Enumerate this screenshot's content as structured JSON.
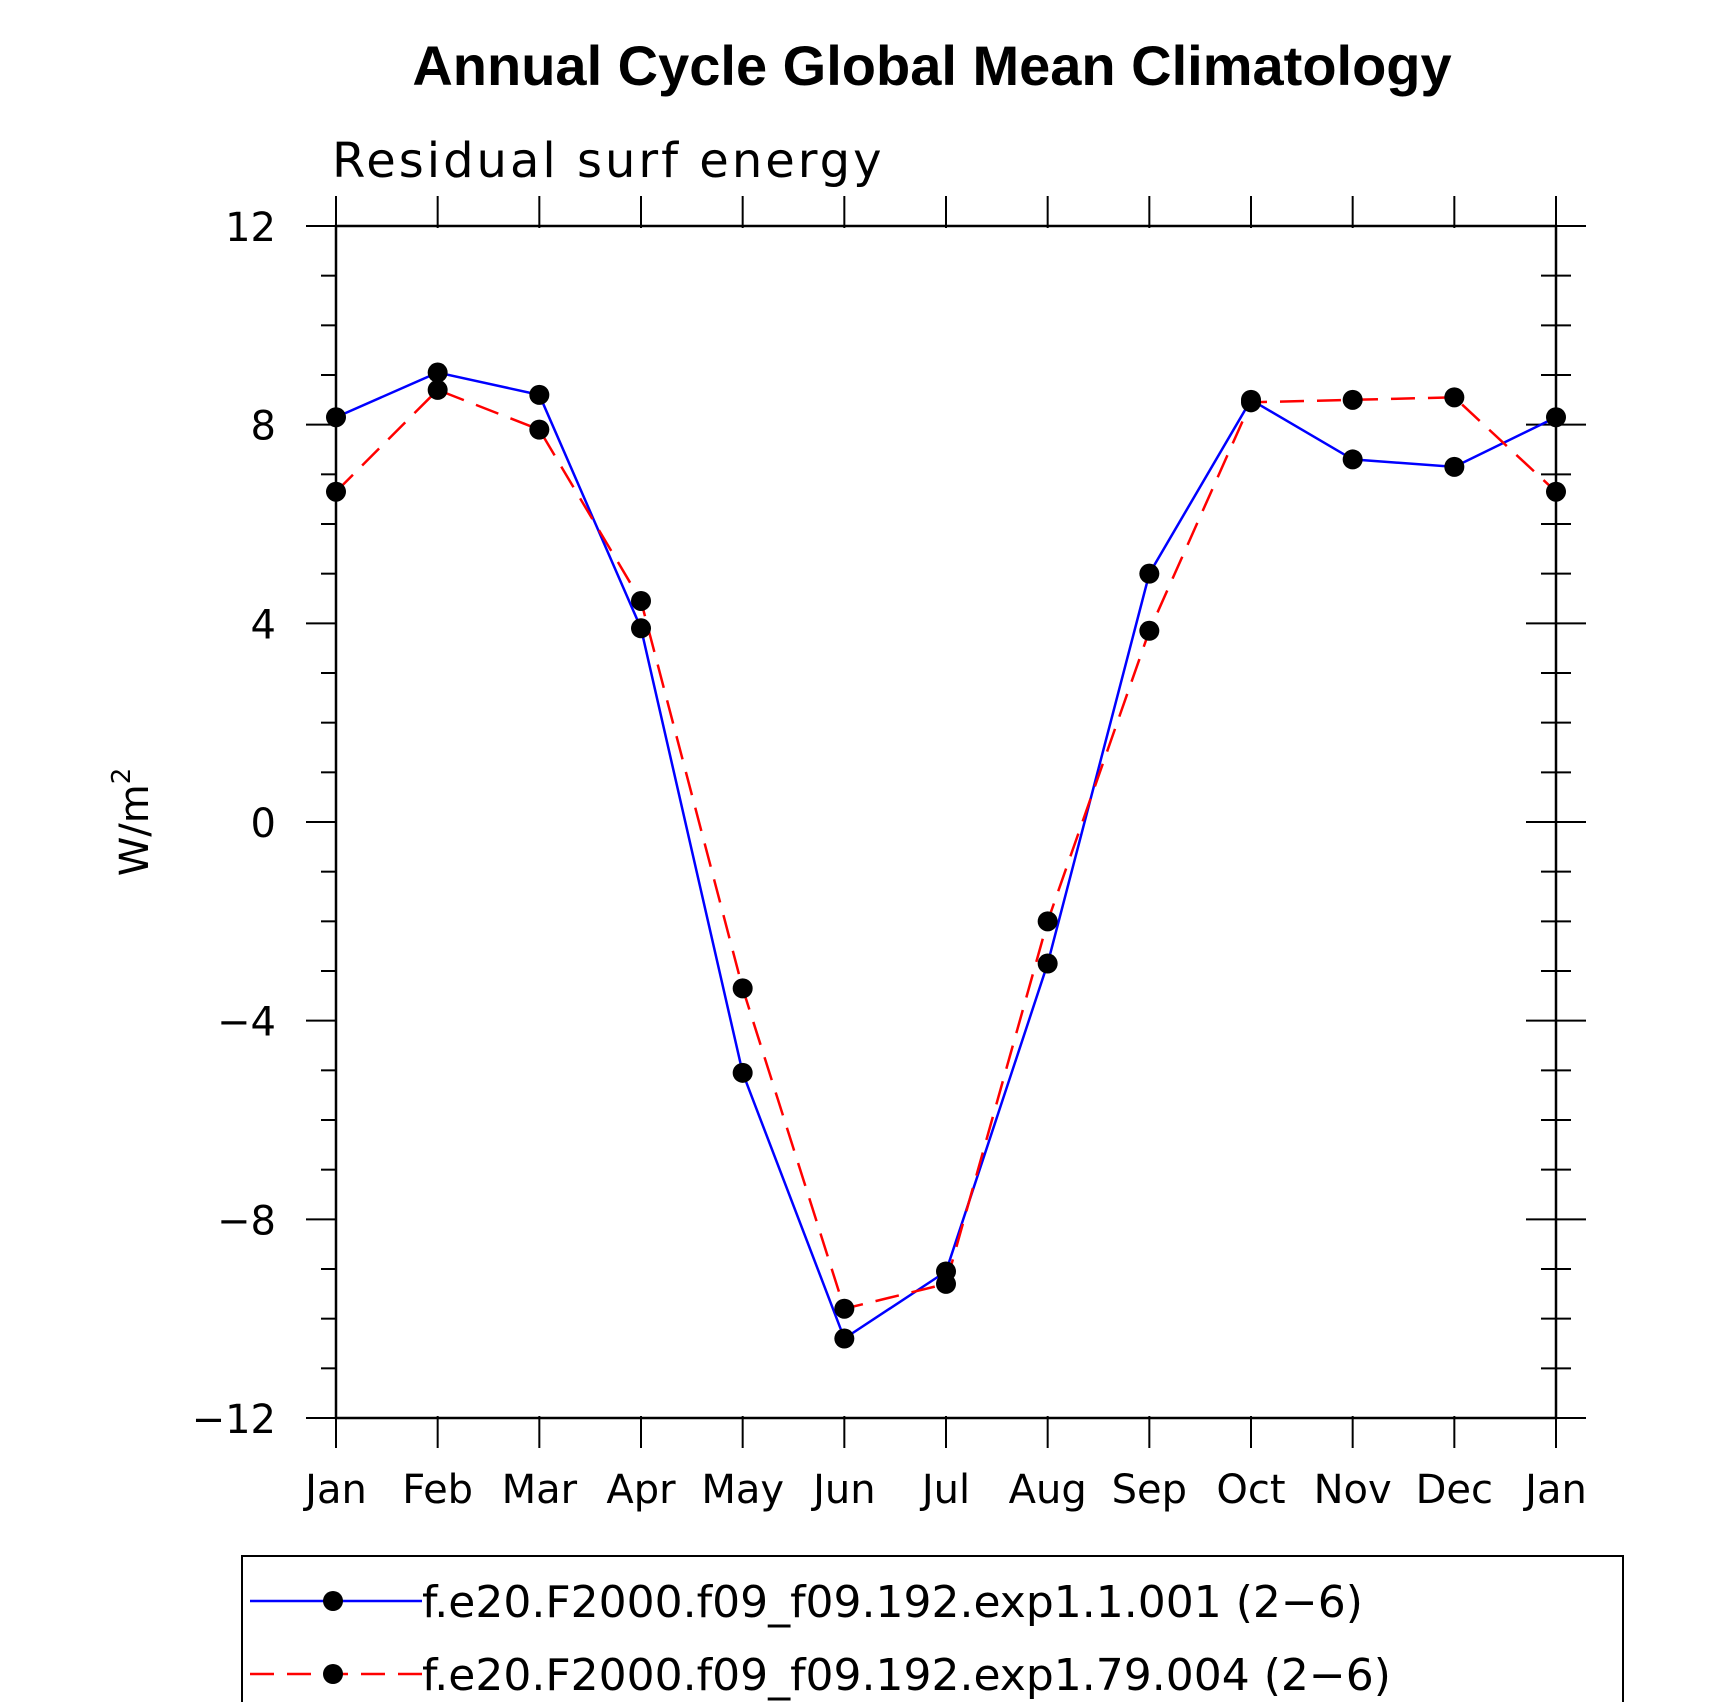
{
  "chart_data": {
    "type": "line",
    "title": "Annual Cycle Global Mean Climatology",
    "subtitle": "Residual surf energy",
    "ylabel": "W/m",
    "ylabel_superscript": "2",
    "categories": [
      "Jan",
      "Feb",
      "Mar",
      "Apr",
      "May",
      "Jun",
      "Jul",
      "Aug",
      "Sep",
      "Oct",
      "Nov",
      "Dec",
      "Jan"
    ],
    "ylim": [
      -12,
      12
    ],
    "yticks": [
      -12,
      -8,
      -4,
      0,
      4,
      8,
      12
    ],
    "ytick_labels": [
      "−12",
      "−8",
      "−4",
      "0",
      "4",
      "8",
      "12"
    ],
    "series": [
      {
        "name": "f.e20.F2000.f09_f09.192.exp1.1.001 (2−6)",
        "color": "#0000ff",
        "dash": "solid",
        "values": [
          8.15,
          9.05,
          8.6,
          3.9,
          -5.05,
          -10.4,
          -9.05,
          -2.85,
          5.0,
          8.5,
          7.3,
          7.15,
          8.15
        ]
      },
      {
        "name": "f.e20.F2000.f09_f09.192.exp1.79.004 (2−6)",
        "color": "#ff0000",
        "dash": "dashed",
        "values": [
          6.65,
          8.7,
          7.9,
          4.45,
          -3.35,
          -9.8,
          -9.3,
          -2.0,
          3.85,
          8.45,
          8.5,
          8.55,
          6.65
        ]
      }
    ],
    "marker": "filled-circle",
    "marker_color": "#000000",
    "grid": false,
    "legend_position": "bottom"
  }
}
